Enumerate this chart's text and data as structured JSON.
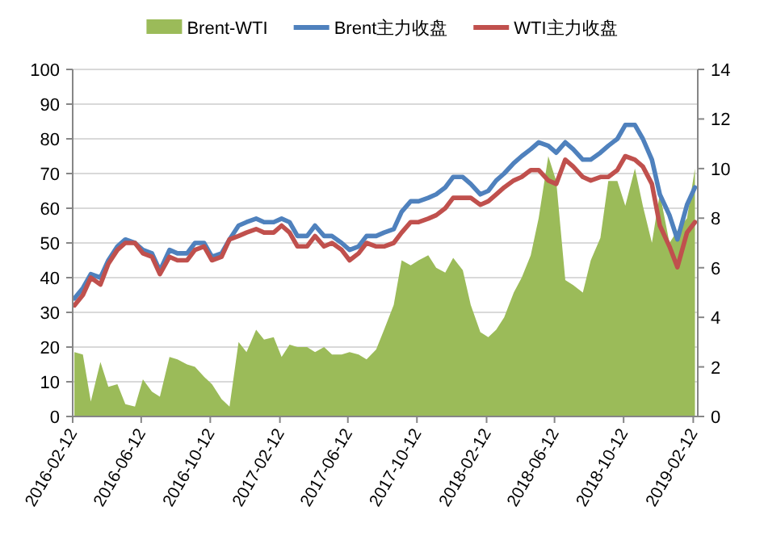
{
  "chart_data": {
    "type": "line",
    "x": [
      "2016-02-15",
      "2016-03-01",
      "2016-03-15",
      "2016-04-01",
      "2016-04-15",
      "2016-05-01",
      "2016-05-15",
      "2016-06-01",
      "2016-06-15",
      "2016-07-01",
      "2016-07-15",
      "2016-08-01",
      "2016-08-15",
      "2016-09-01",
      "2016-09-15",
      "2016-10-01",
      "2016-10-15",
      "2016-11-01",
      "2016-11-15",
      "2016-12-01",
      "2016-12-15",
      "2017-01-01",
      "2017-01-15",
      "2017-02-01",
      "2017-02-15",
      "2017-03-01",
      "2017-03-15",
      "2017-04-01",
      "2017-04-15",
      "2017-05-01",
      "2017-05-15",
      "2017-06-01",
      "2017-06-15",
      "2017-07-01",
      "2017-07-15",
      "2017-08-01",
      "2017-08-15",
      "2017-09-01",
      "2017-09-15",
      "2017-10-01",
      "2017-10-15",
      "2017-11-01",
      "2017-11-15",
      "2017-12-01",
      "2017-12-15",
      "2018-01-01",
      "2018-01-15",
      "2018-02-01",
      "2018-02-15",
      "2018-03-01",
      "2018-03-15",
      "2018-04-01",
      "2018-04-15",
      "2018-05-01",
      "2018-05-15",
      "2018-06-01",
      "2018-06-15",
      "2018-07-01",
      "2018-07-15",
      "2018-08-01",
      "2018-08-15",
      "2018-09-01",
      "2018-09-15",
      "2018-10-01",
      "2018-10-15",
      "2018-11-01",
      "2018-11-15",
      "2018-12-01",
      "2018-12-15",
      "2019-01-01",
      "2019-01-15",
      "2019-02-01",
      "2019-02-15"
    ],
    "series": [
      {
        "name": "Brent-WTI",
        "type": "area",
        "axis": "y2",
        "color": "#9bbb59",
        "values": [
          2.6,
          2.5,
          0.6,
          2.2,
          1.2,
          1.3,
          0.5,
          0.4,
          1.5,
          1.0,
          0.8,
          2.4,
          2.3,
          2.1,
          2.0,
          1.6,
          1.3,
          0.7,
          0.4,
          3.0,
          2.6,
          3.5,
          3.1,
          3.2,
          2.4,
          2.9,
          2.8,
          2.8,
          2.6,
          2.8,
          2.5,
          2.5,
          2.6,
          2.5,
          2.3,
          2.7,
          3.5,
          4.5,
          6.3,
          6.1,
          6.3,
          6.5,
          6.0,
          5.8,
          6.4,
          5.9,
          4.5,
          3.4,
          3.2,
          3.5,
          4.0,
          5.0,
          5.6,
          6.5,
          8.0,
          10.5,
          9.5,
          5.5,
          5.3,
          5.0,
          6.3,
          7.2,
          9.5,
          9.5,
          8.5,
          10.0,
          8.5,
          7.0,
          9.0,
          7.0,
          7.5,
          8.0,
          10.0
        ]
      },
      {
        "name": "Brent主力收盘",
        "color": "#4f81bd",
        "values": [
          34,
          37,
          41,
          40,
          45,
          49,
          51,
          50,
          48,
          47,
          42,
          48,
          47,
          47,
          50,
          50,
          46,
          47,
          51,
          55,
          56,
          57,
          56,
          56,
          57,
          56,
          52,
          52,
          55,
          52,
          52,
          50,
          48,
          49,
          52,
          52,
          53,
          54,
          59,
          62,
          62,
          63,
          64,
          66,
          69,
          69,
          67,
          64,
          65,
          68,
          70,
          73,
          75,
          77,
          79,
          78,
          76,
          79,
          77,
          74,
          74,
          76,
          78,
          80,
          84,
          84,
          80,
          74,
          64,
          58,
          51,
          61,
          66
        ]
      },
      {
        "name": "WTI主力收盘",
        "color": "#c0504d",
        "values": [
          32,
          35,
          40,
          38,
          44,
          48,
          50,
          50,
          47,
          46,
          41,
          46,
          45,
          45,
          48,
          49,
          45,
          46,
          51,
          52,
          53,
          54,
          53,
          53,
          55,
          53,
          49,
          49,
          52,
          49,
          50,
          48,
          45,
          47,
          50,
          49,
          49,
          50,
          53,
          56,
          56,
          57,
          58,
          60,
          63,
          63,
          63,
          61,
          62,
          64,
          66,
          68,
          69,
          71,
          71,
          68,
          67,
          74,
          72,
          69,
          68,
          69,
          69,
          71,
          75,
          74,
          72,
          67,
          55,
          49,
          43,
          53,
          56
        ]
      }
    ],
    "xlim": [
      "2016-02-12",
      "2019-02-20"
    ],
    "xticks": [
      "2016-02-12",
      "2016-06-12",
      "2016-10-12",
      "2017-02-12",
      "2017-06-12",
      "2017-10-12",
      "2018-02-12",
      "2018-06-12",
      "2018-10-12",
      "2019-02-12"
    ],
    "ylim": [
      0,
      100
    ],
    "yticks": [
      0,
      10,
      20,
      30,
      40,
      50,
      60,
      70,
      80,
      90,
      100
    ],
    "y2lim": [
      0,
      14
    ],
    "y2ticks": [
      0,
      2,
      4,
      6,
      8,
      10,
      12,
      14
    ],
    "grid": "y",
    "legend": "top"
  }
}
